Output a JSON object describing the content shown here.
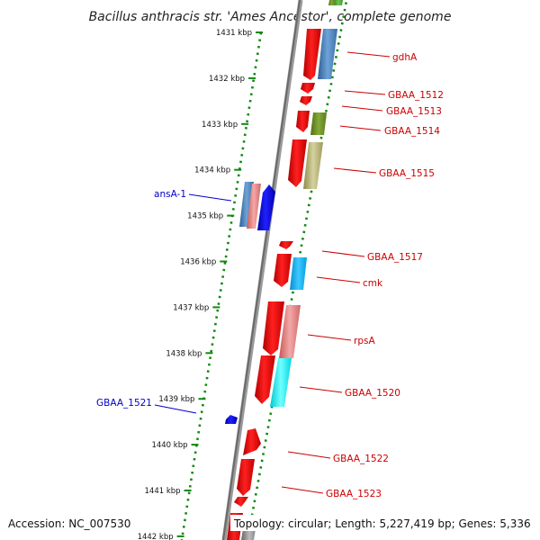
{
  "title": "Bacillus anthracis str. 'Ames Ancestor', complete genome",
  "footer": {
    "accession": "Accession: NC_007530",
    "summary": "Topology: circular; Length: 5,227,419 bp; Genes: 5,336"
  },
  "ticks": [
    "1431 kbp",
    "1432 kbp",
    "1433 kbp",
    "1434 kbp",
    "1435 kbp",
    "1436 kbp",
    "1437 kbp",
    "1438 kbp",
    "1439 kbp",
    "1440 kbp",
    "1441 kbp",
    "1442 kbp"
  ],
  "gene_labels_forward": [
    "gdhA",
    "GBAA_1512",
    "GBAA_1513",
    "GBAA_1514",
    "GBAA_1515",
    "GBAA_1517",
    "cmk",
    "rpsA",
    "GBAA_1520",
    "GBAA_1522",
    "GBAA_1523"
  ],
  "gene_labels_reverse": [
    "ansA-1",
    "GBAA_1521"
  ],
  "colors": {
    "cds": "#ff0000",
    "reverse_cds": "#0000ff",
    "label_forward": "#cc0000",
    "label_reverse": "#0000cc",
    "tick": "#118811",
    "backbone": "#888888"
  }
}
